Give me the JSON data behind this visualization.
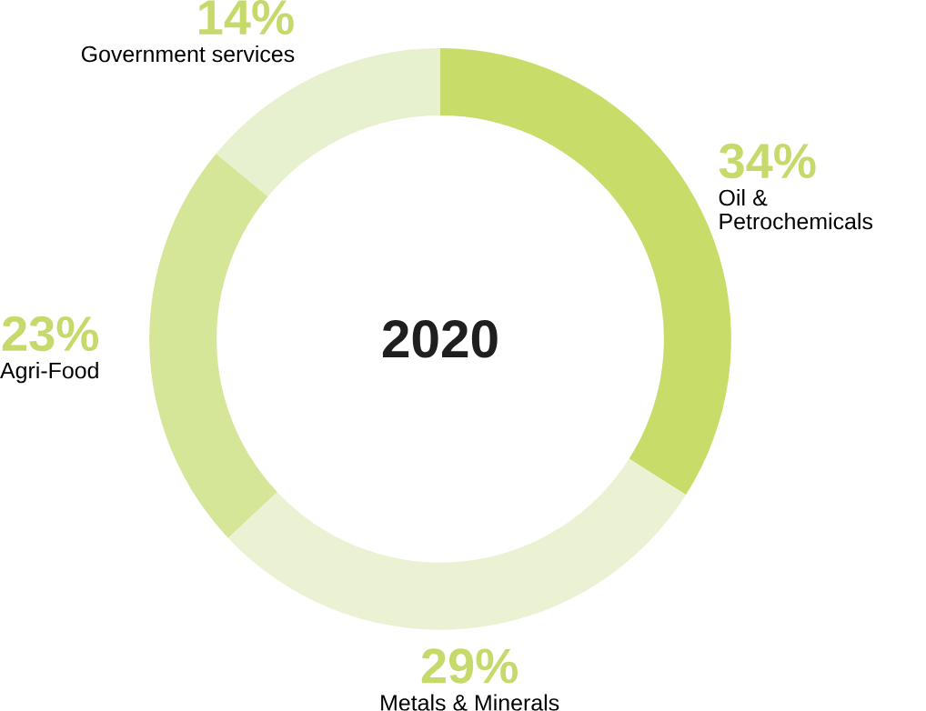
{
  "chart_data": {
    "type": "donut",
    "title": "2020",
    "categories": [
      "Oil & Petrochemicals",
      "Metals & Minerals",
      "Agri-Food",
      "Government services"
    ],
    "values": [
      34,
      29,
      23,
      14
    ],
    "colors": [
      "#c8dc6a",
      "#eaf2d3",
      "#d6e699",
      "#e8f1cf"
    ],
    "value_labels": [
      "34%",
      "29%",
      "23%",
      "14%"
    ]
  }
}
